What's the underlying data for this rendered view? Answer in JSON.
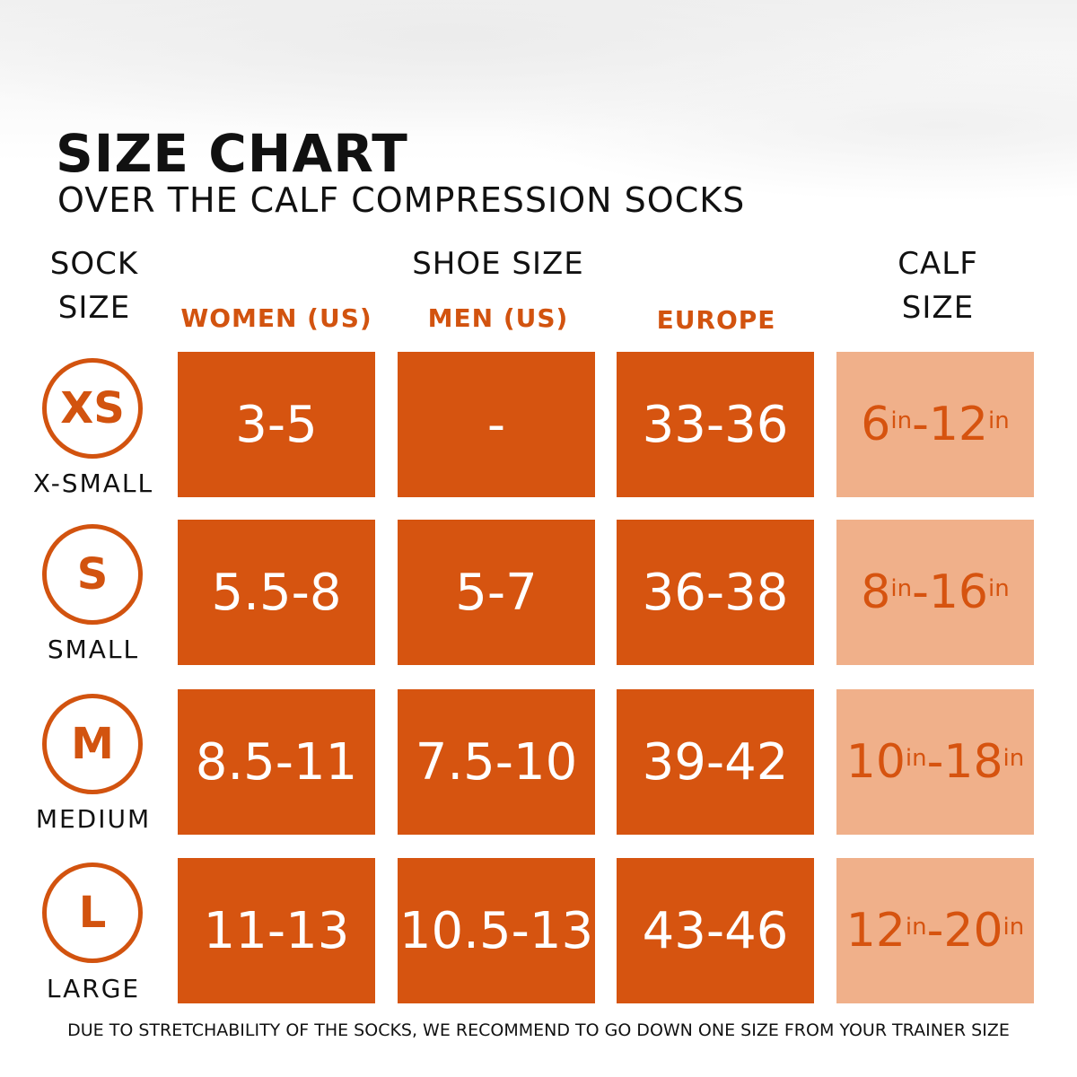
{
  "header": {
    "title": "SIZE CHART",
    "subtitle": "OVER THE CALF COMPRESSION SOCKS"
  },
  "columns": {
    "sock_size_line1": "SOCK",
    "sock_size_line2": "SIZE",
    "shoe_size": "SHOE SIZE",
    "women": "WOMEN (US)",
    "men": "MEN (US)",
    "europe": "EUROPE",
    "calf_line1": "CALF",
    "calf_line2": "SIZE"
  },
  "unit": "in",
  "rows": [
    {
      "code": "XS",
      "label": "X-SMALL",
      "women": "3-5",
      "men": "-",
      "europe": "33-36",
      "calf_min": "6",
      "calf_max": "12"
    },
    {
      "code": "S",
      "label": "SMALL",
      "women": "5.5-8",
      "men": "5-7",
      "europe": "36-38",
      "calf_min": "8",
      "calf_max": "16"
    },
    {
      "code": "M",
      "label": "MEDIUM",
      "women": "8.5-11",
      "men": "7.5-10",
      "europe": "39-42",
      "calf_min": "10",
      "calf_max": "18"
    },
    {
      "code": "L",
      "label": "LARGE",
      "women": "11-13",
      "men": "10.5-13",
      "europe": "43-46",
      "calf_min": "12",
      "calf_max": "20"
    }
  ],
  "footer": "DUE TO STRETCHABILITY OF THE SOCKS, WE RECOMMEND TO GO DOWN ONE SIZE FROM YOUR TRAINER SIZE",
  "colors": {
    "accent": "#d65410",
    "calf_fill": "#f0b08a",
    "text": "#111111"
  }
}
